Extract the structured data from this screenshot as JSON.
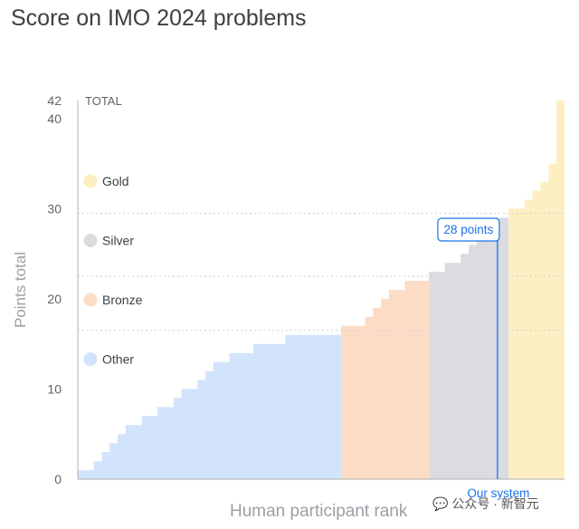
{
  "chart_data": {
    "type": "area",
    "title": "Score on IMO 2024 problems",
    "xlabel": "Human participant rank",
    "ylabel": "Points total",
    "ylim": [
      0,
      42
    ],
    "yticks": [
      0,
      10,
      20,
      30,
      40,
      42
    ],
    "total_label": "TOTAL",
    "grid": true,
    "gridlines": [
      16.5,
      22.5,
      29.5
    ],
    "legend_placement": "left",
    "legend": [
      {
        "name": "Gold",
        "color": "#fdefc2"
      },
      {
        "name": "Silver",
        "color": "#dcdce0"
      },
      {
        "name": "Bronze",
        "color": "#fddcc6"
      },
      {
        "name": "Other",
        "color": "#d2e3fc"
      }
    ],
    "series": [
      {
        "name": "Other",
        "color": "#d2e3fc",
        "steps": [
          [
            0,
            1
          ],
          [
            2,
            2
          ],
          [
            3,
            3
          ],
          [
            4,
            4
          ],
          [
            5,
            5
          ],
          [
            6,
            6
          ],
          [
            8,
            7
          ],
          [
            10,
            8
          ],
          [
            12,
            9
          ],
          [
            13,
            10
          ],
          [
            15,
            11
          ],
          [
            16,
            12
          ],
          [
            17,
            13
          ],
          [
            19,
            14
          ],
          [
            22,
            15
          ],
          [
            26,
            16
          ],
          [
            33,
            16
          ]
        ]
      },
      {
        "name": "Bronze",
        "color": "#fddcc6",
        "steps": [
          [
            33,
            17
          ],
          [
            35,
            17
          ],
          [
            36,
            18
          ],
          [
            37,
            19
          ],
          [
            38,
            20
          ],
          [
            39,
            21
          ],
          [
            41,
            22
          ],
          [
            44,
            22
          ]
        ]
      },
      {
        "name": "Silver",
        "color": "#dcdce0",
        "steps": [
          [
            44,
            23
          ],
          [
            46,
            24
          ],
          [
            48,
            25
          ],
          [
            49,
            26
          ],
          [
            50,
            27
          ],
          [
            51,
            28
          ],
          [
            52,
            29
          ],
          [
            54,
            29
          ]
        ]
      },
      {
        "name": "Gold",
        "color": "#fdefc2",
        "steps": [
          [
            54,
            30
          ],
          [
            55,
            30
          ],
          [
            56,
            31
          ],
          [
            57,
            32
          ],
          [
            58,
            33
          ],
          [
            59,
            35
          ],
          [
            60,
            42
          ],
          [
            61,
            42
          ]
        ]
      }
    ],
    "x_range": [
      0,
      61
    ],
    "annotations": [
      {
        "label": "28 points",
        "value": 28,
        "x": 52.6,
        "color": "#1a73e8"
      }
    ],
    "marker_label": "Our system",
    "marker_x": 52.6
  },
  "watermark": "公众号 · 新智元"
}
